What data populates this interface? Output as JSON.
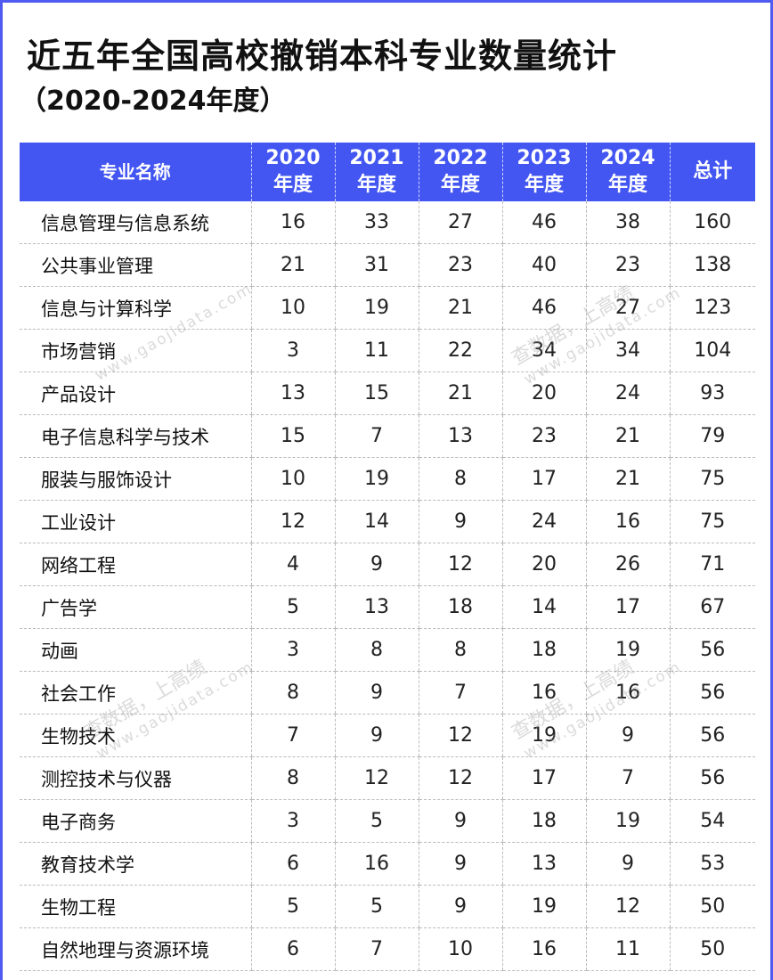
{
  "title": "近五年全国高校撤销本科专业数量统计",
  "subtitle": "（2020-2024年度）",
  "watermark": {
    "line1": "查数据，上高绩",
    "line2": "www.gaojidata.com"
  },
  "colors": {
    "header_bg": "#4356f2",
    "frame": "#4f5bf0"
  },
  "table": {
    "headers": [
      {
        "top": "专业名称",
        "bottom": ""
      },
      {
        "top": "2020",
        "bottom": "年度"
      },
      {
        "top": "2021",
        "bottom": "年度"
      },
      {
        "top": "2022",
        "bottom": "年度"
      },
      {
        "top": "2023",
        "bottom": "年度"
      },
      {
        "top": "2024",
        "bottom": "年度"
      },
      {
        "top": "总计",
        "bottom": ""
      }
    ],
    "rows": [
      [
        "信息管理与信息系统",
        "16",
        "33",
        "27",
        "46",
        "38",
        "160"
      ],
      [
        "公共事业管理",
        "21",
        "31",
        "23",
        "40",
        "23",
        "138"
      ],
      [
        "信息与计算科学",
        "10",
        "19",
        "21",
        "46",
        "27",
        "123"
      ],
      [
        "市场营销",
        "3",
        "11",
        "22",
        "34",
        "34",
        "104"
      ],
      [
        "产品设计",
        "13",
        "15",
        "21",
        "20",
        "24",
        "93"
      ],
      [
        "电子信息科学与技术",
        "15",
        "7",
        "13",
        "23",
        "21",
        "79"
      ],
      [
        "服装与服饰设计",
        "10",
        "19",
        "8",
        "17",
        "21",
        "75"
      ],
      [
        "工业设计",
        "12",
        "14",
        "9",
        "24",
        "16",
        "75"
      ],
      [
        "网络工程",
        "4",
        "9",
        "12",
        "20",
        "26",
        "71"
      ],
      [
        "广告学",
        "5",
        "13",
        "18",
        "14",
        "17",
        "67"
      ],
      [
        "动画",
        "3",
        "8",
        "8",
        "18",
        "19",
        "56"
      ],
      [
        "社会工作",
        "8",
        "9",
        "7",
        "16",
        "16",
        "56"
      ],
      [
        "生物技术",
        "7",
        "9",
        "12",
        "19",
        "9",
        "56"
      ],
      [
        "测控技术与仪器",
        "8",
        "12",
        "12",
        "17",
        "7",
        "56"
      ],
      [
        "电子商务",
        "3",
        "5",
        "9",
        "18",
        "19",
        "54"
      ],
      [
        "教育技术学",
        "6",
        "16",
        "9",
        "13",
        "9",
        "53"
      ],
      [
        "生物工程",
        "5",
        "5",
        "9",
        "19",
        "12",
        "50"
      ],
      [
        "自然地理与资源环境",
        "6",
        "7",
        "10",
        "16",
        "11",
        "50"
      ]
    ]
  }
}
